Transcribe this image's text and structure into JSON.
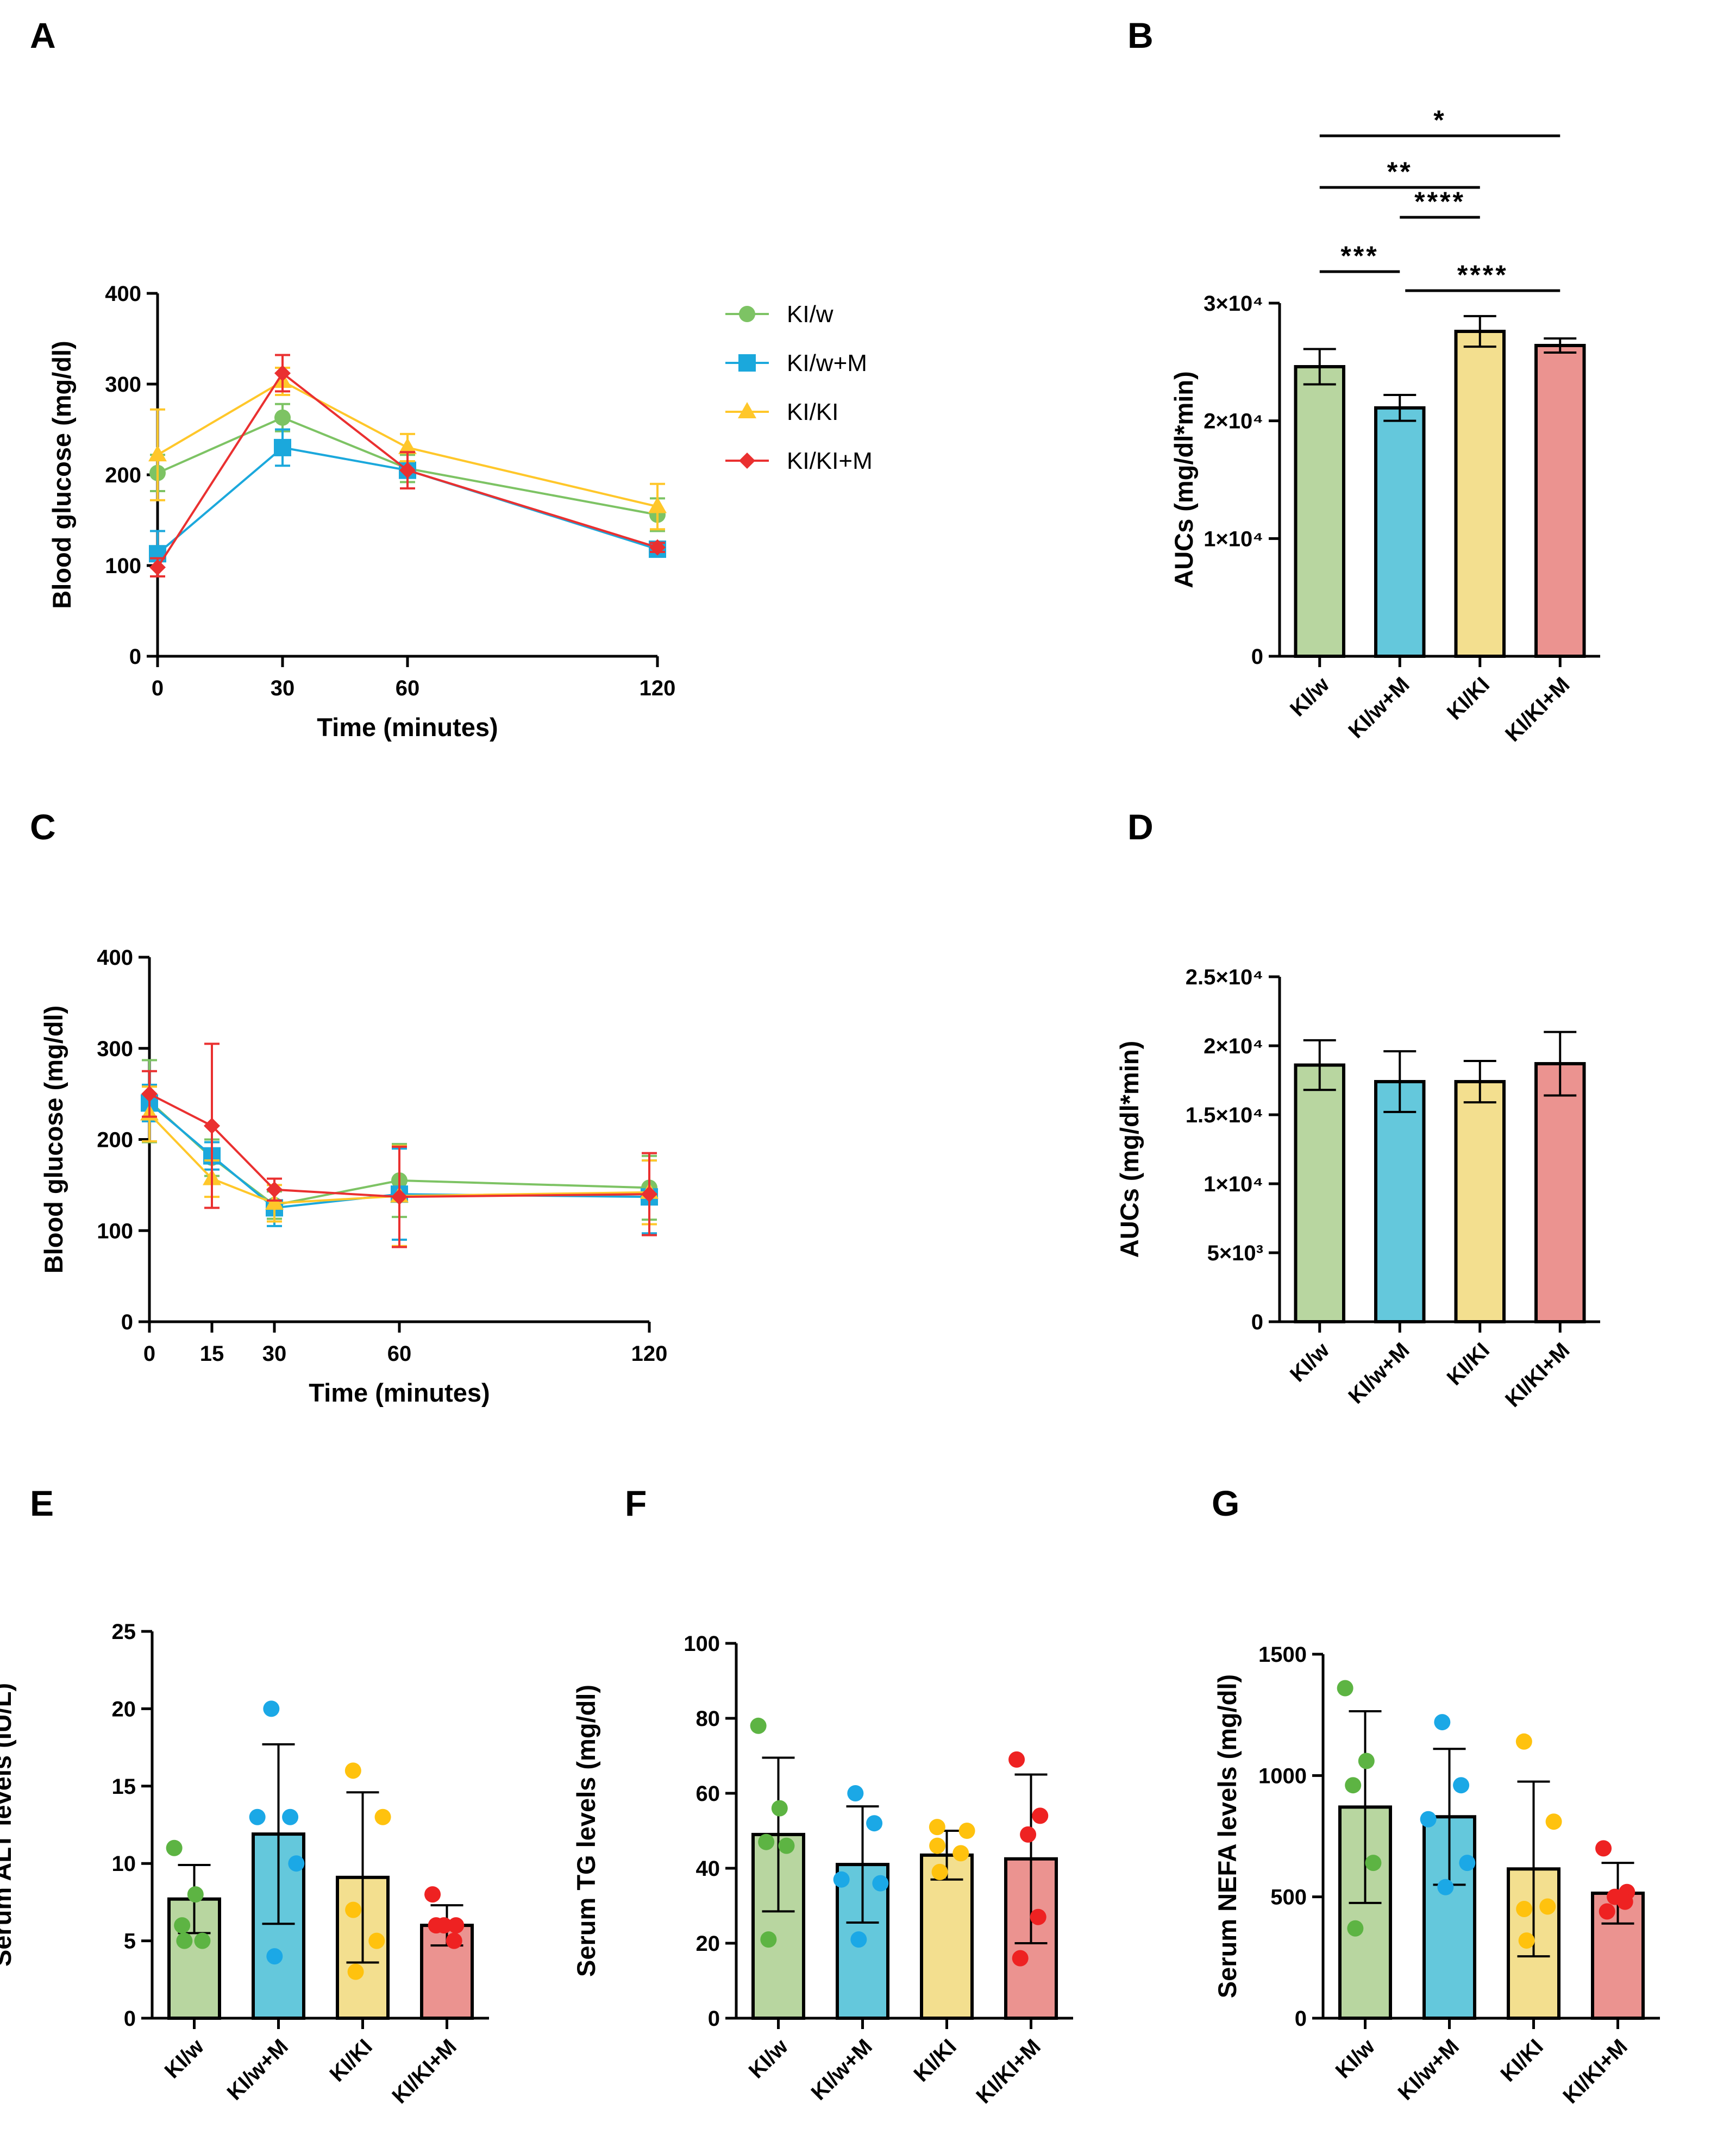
{
  "panels": {
    "A": "A",
    "B": "B",
    "C": "C",
    "D": "D",
    "E": "E",
    "F": "F",
    "G": "G"
  },
  "group_colors": {
    "KI/w": {
      "line": "#7dc364",
      "fill": "#b8d6a0",
      "point": "#5db443"
    },
    "KI/w+M": {
      "line": "#1ba8dc",
      "fill": "#64c8dc",
      "point": "#1ba8e6"
    },
    "KI/KI": {
      "line": "#ffc72a",
      "fill": "#f3df8f",
      "point": "#ffc20e"
    },
    "KI/KI+M": {
      "line": "#ea3030",
      "fill": "#eb9390",
      "point": "#ee2222"
    }
  },
  "chart_data": [
    {
      "id": "A",
      "type": "line",
      "xlabel": "Time (minutes)",
      "ylabel": "Blood glucose (mg/dl)",
      "ylim": [
        0,
        400
      ],
      "yticks": [
        "0",
        "100",
        "200",
        "300",
        "400"
      ],
      "xlim": [
        0,
        120
      ],
      "x": [
        0,
        30,
        60,
        120
      ],
      "xticks": [
        "0",
        "30",
        "60",
        "120"
      ],
      "legend": [
        "KI/w",
        "KI/w+M",
        "KI/KI",
        "KI/KI+M"
      ],
      "series": [
        {
          "name": "KI/w",
          "marker": "circle",
          "values": [
            202,
            263,
            207,
            156
          ],
          "err": [
            20,
            15,
            15,
            18
          ]
        },
        {
          "name": "KI/w+M",
          "marker": "square",
          "values": [
            113,
            230,
            205,
            118
          ],
          "err": [
            25,
            20,
            20,
            5
          ]
        },
        {
          "name": "KI/KI",
          "marker": "triangle",
          "values": [
            222,
            303,
            230,
            165
          ],
          "err": [
            50,
            15,
            15,
            25
          ]
        },
        {
          "name": "KI/KI+M",
          "marker": "diamond",
          "values": [
            98,
            312,
            205,
            120
          ],
          "err": [
            10,
            20,
            20,
            5
          ]
        }
      ]
    },
    {
      "id": "B",
      "type": "bar",
      "ylabel": "AUCs (mg/dl*min)",
      "ylim": [
        0,
        30000
      ],
      "yticks": [
        "0",
        "1×10⁴",
        "2×10⁴",
        "3×10⁴"
      ],
      "categories": [
        "KI/w",
        "KI/w+M",
        "KI/KI",
        "KI/KI+M"
      ],
      "values": [
        24600,
        21100,
        27600,
        26400
      ],
      "err": [
        1500,
        1100,
        1300,
        600
      ],
      "significance": [
        {
          "from": 0,
          "to": 3,
          "label": "*"
        },
        {
          "from": 0,
          "to": 2,
          "label": "**"
        },
        {
          "from": 1,
          "to": 2,
          "label": "****"
        },
        {
          "from": 0,
          "to": 1,
          "label": "***"
        },
        {
          "from": 1,
          "to": 3,
          "label": "****"
        }
      ]
    },
    {
      "id": "C",
      "type": "line",
      "xlabel": "Time (minutes)",
      "ylabel": "Blood glucose (mg/dl)",
      "ylim": [
        0,
        400
      ],
      "yticks": [
        "0",
        "100",
        "200",
        "300",
        "400"
      ],
      "xlim": [
        0,
        120
      ],
      "x": [
        0,
        15,
        30,
        60,
        120
      ],
      "xticks": [
        "0",
        "15",
        "30",
        "60",
        "120"
      ],
      "series": [
        {
          "name": "KI/w",
          "marker": "circle",
          "values": [
            242,
            180,
            128,
            155,
            147
          ],
          "err": [
            45,
            20,
            15,
            40,
            35
          ]
        },
        {
          "name": "KI/w+M",
          "marker": "square",
          "values": [
            240,
            182,
            125,
            140,
            137
          ],
          "err": [
            20,
            15,
            20,
            50,
            40
          ]
        },
        {
          "name": "KI/KI",
          "marker": "triangle",
          "values": [
            228,
            157,
            130,
            138,
            142
          ],
          "err": [
            30,
            20,
            20,
            55,
            35
          ]
        },
        {
          "name": "KI/KI+M",
          "marker": "diamond",
          "values": [
            250,
            215,
            145,
            137,
            140
          ],
          "err": [
            25,
            90,
            12,
            55,
            45
          ]
        }
      ]
    },
    {
      "id": "D",
      "type": "bar",
      "ylabel": "AUCs (mg/dl*min)",
      "ylim": [
        0,
        25000
      ],
      "yticks": [
        "0",
        "5×10³",
        "1×10⁴",
        "1.5×10⁴",
        "2×10⁴",
        "2.5×10⁴"
      ],
      "categories": [
        "KI/w",
        "KI/w+M",
        "KI/KI",
        "KI/KI+M"
      ],
      "values": [
        18600,
        17400,
        17400,
        18700
      ],
      "err": [
        1800,
        2200,
        1500,
        2300
      ]
    },
    {
      "id": "E",
      "type": "bar",
      "ylabel": "Serum ALT levels (IU/L)",
      "ylim": [
        0,
        25
      ],
      "yticks": [
        "0",
        "5",
        "10",
        "15",
        "20",
        "25"
      ],
      "categories": [
        "KI/w",
        "KI/w+M",
        "KI/KI",
        "KI/KI+M"
      ],
      "values": [
        7.7,
        11.9,
        9.1,
        6.0
      ],
      "err": [
        2.2,
        5.8,
        5.5,
        1.3
      ],
      "points": [
        [
          11,
          8,
          6,
          5,
          5
        ],
        [
          20,
          13,
          13,
          10,
          4
        ],
        [
          16,
          13,
          7,
          5,
          3
        ],
        [
          8,
          6,
          6,
          5,
          6
        ]
      ]
    },
    {
      "id": "F",
      "type": "bar",
      "ylabel": "Serum TG levels (mg/dl)",
      "ylim": [
        0,
        100
      ],
      "yticks": [
        "0",
        "20",
        "40",
        "60",
        "80",
        "100"
      ],
      "categories": [
        "KI/w",
        "KI/w+M",
        "KI/KI",
        "KI/KI+M"
      ],
      "values": [
        49,
        41,
        43.5,
        42.5
      ],
      "err": [
        20.5,
        15.5,
        6.5,
        22.5
      ],
      "points": [
        [
          78,
          56,
          47,
          46,
          21
        ],
        [
          60,
          52,
          37,
          36,
          21
        ],
        [
          51,
          50,
          46,
          44,
          39
        ],
        [
          69,
          54,
          49,
          27,
          16
        ]
      ]
    },
    {
      "id": "G",
      "type": "bar",
      "ylabel": "Serum NEFA levels (mg/dl)",
      "ylim": [
        0,
        1500
      ],
      "yticks": [
        "0",
        "500",
        "1000",
        "1500"
      ],
      "categories": [
        "KI/w",
        "KI/w+M",
        "KI/KI",
        "KI/KI+M"
      ],
      "values": [
        870,
        830,
        615,
        515
      ],
      "err": [
        395,
        280,
        360,
        125
      ],
      "points": [
        [
          1360,
          1060,
          960,
          640,
          370
        ],
        [
          1220,
          960,
          820,
          640,
          540
        ],
        [
          1140,
          810,
          450,
          460,
          320
        ],
        [
          700,
          520,
          500,
          480,
          440
        ]
      ]
    }
  ]
}
